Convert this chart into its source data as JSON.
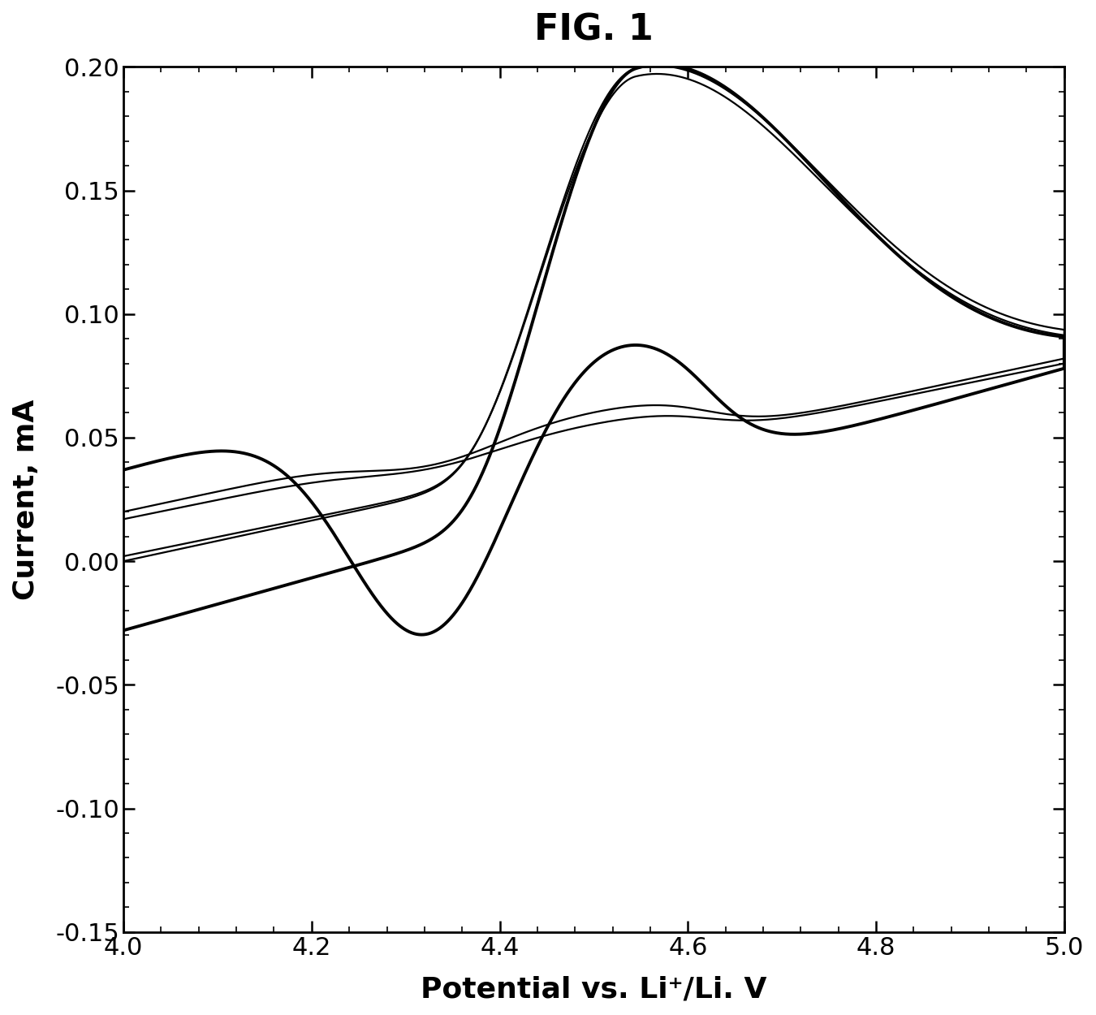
{
  "title": "FIG. 1",
  "xlabel": "Potential vs. Li⁺/Li. V",
  "ylabel": "Current, mA",
  "xlim": [
    4.0,
    5.0
  ],
  "ylim": [
    -0.15,
    0.2
  ],
  "xticks": [
    4.0,
    4.2,
    4.4,
    4.6,
    4.8,
    5.0
  ],
  "yticks": [
    -0.15,
    -0.1,
    -0.05,
    0.0,
    0.05,
    0.1,
    0.15,
    0.2
  ],
  "background_color": "#ffffff",
  "line_color": "#000000",
  "title_fontsize": 32,
  "label_fontsize": 26,
  "tick_fontsize": 22
}
